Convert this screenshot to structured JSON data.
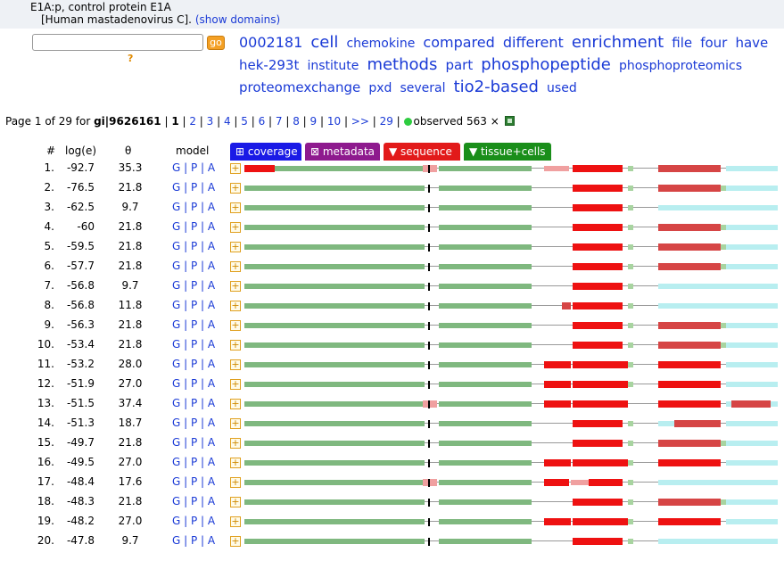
{
  "header": {
    "title": "E1A:p, control protein E1A",
    "subtitle": "[Human mastadenovirus C].",
    "show_domains": "(show domains)"
  },
  "search": {
    "placeholder": "",
    "go_label": "go",
    "help": "?"
  },
  "tagcloud": [
    {
      "word": "0002181",
      "size": 16
    },
    {
      "word": "cell",
      "size": 18
    },
    {
      "word": "chemokine",
      "size": 14
    },
    {
      "word": "compared",
      "size": 16
    },
    {
      "word": "different",
      "size": 16
    },
    {
      "word": "enrichment",
      "size": 18
    },
    {
      "word": "file",
      "size": 15
    },
    {
      "word": "four",
      "size": 15
    },
    {
      "word": "have",
      "size": 15
    },
    {
      "word": "hek-293t",
      "size": 15
    },
    {
      "word": "institute",
      "size": 14
    },
    {
      "word": "methods",
      "size": 18
    },
    {
      "word": "part",
      "size": 15
    },
    {
      "word": "phosphopeptide",
      "size": 18
    },
    {
      "word": "phosphoproteomics",
      "size": 14
    },
    {
      "word": "proteomexchange",
      "size": 15
    },
    {
      "word": "pxd",
      "size": 14
    },
    {
      "word": "several",
      "size": 14
    },
    {
      "word": "tio2-based",
      "size": 18
    },
    {
      "word": "used",
      "size": 14
    }
  ],
  "pager": {
    "prefix": "Page 1 of 29 for ",
    "gi": "gi|9626161",
    "sep": " | ",
    "current": "1",
    "pages": [
      "2",
      "3",
      "4",
      "5",
      "6",
      "7",
      "8",
      "9",
      "10",
      ">>",
      "29"
    ],
    "observed": "observed 563 ×"
  },
  "columns": {
    "num": "#",
    "loge": "log(e)",
    "theta": "θ",
    "model": "model"
  },
  "tabs": [
    {
      "label": "⊞ coverage",
      "color": "#1a1ae6"
    },
    {
      "label": "⊠ metadata",
      "color": "#8e1a8e"
    },
    {
      "label": "▼ sequence",
      "color": "#e21a1a"
    },
    {
      "label": "▼ tissue+cells",
      "color": "#1a8e1a"
    }
  ],
  "model_links": "G | P | A",
  "rows": [
    {
      "num": "1.",
      "loge": "-92.7",
      "theta": "35.3",
      "pattern": 1
    },
    {
      "num": "2.",
      "loge": "-76.5",
      "theta": "21.8",
      "pattern": 0
    },
    {
      "num": "3.",
      "loge": "-62.5",
      "theta": "9.7",
      "pattern": 2
    },
    {
      "num": "4.",
      "loge": "-60",
      "theta": "21.8",
      "pattern": 0
    },
    {
      "num": "5.",
      "loge": "-59.5",
      "theta": "21.8",
      "pattern": 0
    },
    {
      "num": "6.",
      "loge": "-57.7",
      "theta": "21.8",
      "pattern": 0
    },
    {
      "num": "7.",
      "loge": "-56.8",
      "theta": "9.7",
      "pattern": 2
    },
    {
      "num": "8.",
      "loge": "-56.8",
      "theta": "11.8",
      "pattern": 3
    },
    {
      "num": "9.",
      "loge": "-56.3",
      "theta": "21.8",
      "pattern": 0
    },
    {
      "num": "10.",
      "loge": "-53.4",
      "theta": "21.8",
      "pattern": 0
    },
    {
      "num": "11.",
      "loge": "-53.2",
      "theta": "28.0",
      "pattern": 4
    },
    {
      "num": "12.",
      "loge": "-51.9",
      "theta": "27.0",
      "pattern": 4
    },
    {
      "num": "13.",
      "loge": "-51.5",
      "theta": "37.4",
      "pattern": 5
    },
    {
      "num": "14.",
      "loge": "-51.3",
      "theta": "18.7",
      "pattern": 6
    },
    {
      "num": "15.",
      "loge": "-49.7",
      "theta": "21.8",
      "pattern": 0
    },
    {
      "num": "16.",
      "loge": "-49.5",
      "theta": "27.0",
      "pattern": 4
    },
    {
      "num": "17.",
      "loge": "-48.4",
      "theta": "17.6",
      "pattern": 7
    },
    {
      "num": "18.",
      "loge": "-48.3",
      "theta": "21.8",
      "pattern": 0
    },
    {
      "num": "19.",
      "loge": "-48.2",
      "theta": "27.0",
      "pattern": 4
    },
    {
      "num": "20.",
      "loge": "-47.8",
      "theta": "9.7",
      "pattern": 2
    }
  ]
}
